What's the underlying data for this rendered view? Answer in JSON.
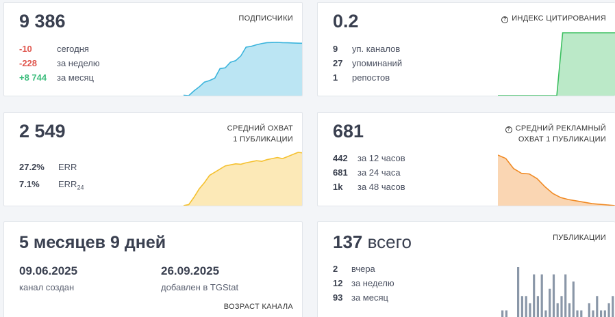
{
  "subscribers": {
    "value": "9 386",
    "label": "ПОДПИСЧИКИ",
    "rows": [
      {
        "value": "-10",
        "text": "сегодня",
        "tone": "neg"
      },
      {
        "value": "-228",
        "text": "за неделю",
        "tone": "neg"
      },
      {
        "value": "+8 744",
        "text": "за месяц",
        "tone": "pos"
      }
    ],
    "chart_color": "#3bb4dc",
    "series": [
      2850,
      2800,
      3400,
      3900,
      4500,
      4700,
      5000,
      6200,
      6300,
      7000,
      7200,
      7800,
      8900,
      9000,
      9200,
      9350,
      9460,
      9480,
      9500,
      9460,
      9450,
      9420,
      9400,
      9386
    ]
  },
  "citation": {
    "value": "0.2",
    "label": "ИНДЕКС ЦИТИРОВАНИЯ",
    "rows": [
      {
        "value": "9",
        "text": "уп. каналов"
      },
      {
        "value": "27",
        "text": "упоминаний"
      },
      {
        "value": "1",
        "text": "репостов"
      }
    ],
    "chart_color": "#3cbf60",
    "series": [
      0,
      0,
      0,
      0,
      0,
      0,
      0,
      0,
      0,
      0,
      0,
      0.2,
      0.2,
      0.2,
      0.2,
      0.2,
      0.2,
      0.2,
      0.2,
      0.2,
      0.2
    ]
  },
  "reach": {
    "value": "2 549",
    "label_line1": "СРЕДНИЙ ОХВАТ",
    "label_line2": "1 ПУБЛИКАЦИИ",
    "rows": [
      {
        "value": "27.2%",
        "text": "ERR"
      },
      {
        "value": "7.1%",
        "text": "ERR",
        "sub": "24"
      }
    ],
    "chart_color": "#f5c130",
    "series": [
      0,
      50,
      400,
      800,
      1100,
      1450,
      1600,
      1750,
      1900,
      1950,
      2000,
      1980,
      2050,
      2100,
      2150,
      2120,
      2200,
      2250,
      2300,
      2250,
      2350,
      2450,
      2549,
      2520
    ]
  },
  "ad_reach": {
    "value": "681",
    "label_line1": "СРЕДНИЙ РЕКЛАМНЫЙ",
    "label_line2": "ОХВАТ 1 ПУБЛИКАЦИИ",
    "rows": [
      {
        "value": "442",
        "text": "за 12 часов"
      },
      {
        "value": "681",
        "text": "за 24 часа"
      },
      {
        "value": "1k",
        "text": "за 48 часов"
      }
    ],
    "chart_color": "#f08a24",
    "series": [
      75,
      70,
      55,
      48,
      47,
      40,
      28,
      18,
      12,
      9,
      7,
      5,
      3,
      2,
      1,
      0
    ]
  },
  "age": {
    "value": "5 месяцев 9 дней",
    "created_date": "09.06.2025",
    "created_label": "канал создан",
    "added_date": "26.09.2025",
    "added_label": "добавлен в TGStat",
    "label": "ВОЗРАСТ КАНАЛА"
  },
  "posts": {
    "value": "137",
    "value_suffix": "всего",
    "label": "ПУБЛИКАЦИИ",
    "rows": [
      {
        "value": "2",
        "text": "вчера"
      },
      {
        "value": "12",
        "text": "за неделю"
      },
      {
        "value": "93",
        "text": "за месяц"
      }
    ],
    "chart_color": "#8a97a8",
    "series": [
      1,
      1,
      0,
      0,
      7,
      3,
      3,
      2,
      6,
      3,
      6,
      1,
      4,
      6,
      2,
      3,
      6,
      2,
      5,
      1,
      1,
      0,
      2,
      1,
      3,
      1,
      1,
      2,
      3
    ]
  }
}
